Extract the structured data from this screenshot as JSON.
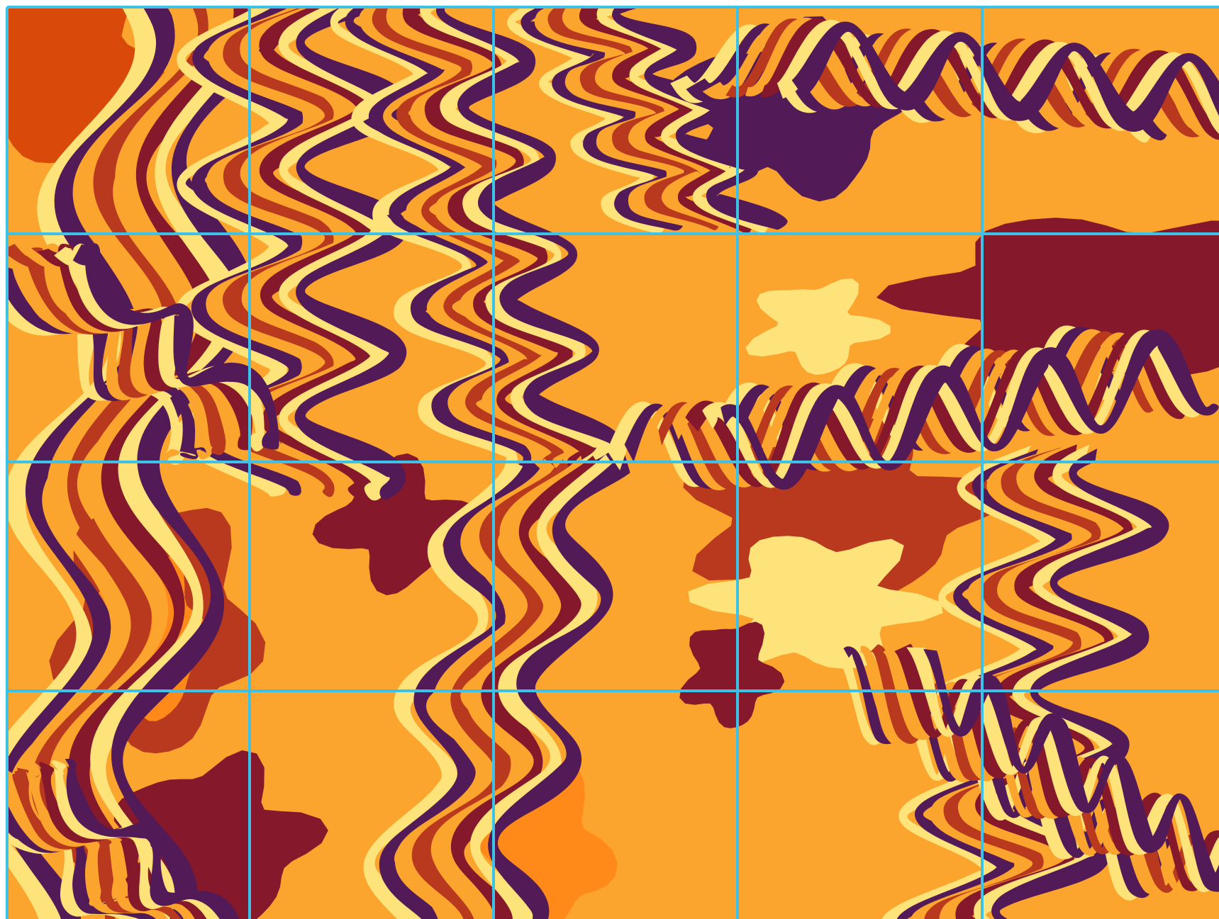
{
  "puzzle": {
    "grid": {
      "rows": 4,
      "cols": 5
    },
    "grid_line_color": "#3EC1E6",
    "palette": {
      "base_orange": "#FBA42E",
      "light_yellow": "#FDE37A",
      "deep_purple": "#521A57",
      "maroon": "#86182B",
      "rust": "#B8391E",
      "burnt_orange": "#D94A0A",
      "bright_orange": "#FF8A1A"
    },
    "tiles": [
      {
        "row": 0,
        "col": 0,
        "seed": 11
      },
      {
        "row": 0,
        "col": 1,
        "seed": 23
      },
      {
        "row": 0,
        "col": 2,
        "seed": 37
      },
      {
        "row": 0,
        "col": 3,
        "seed": 41
      },
      {
        "row": 0,
        "col": 4,
        "seed": 53
      },
      {
        "row": 1,
        "col": 0,
        "seed": 61
      },
      {
        "row": 1,
        "col": 1,
        "seed": 73
      },
      {
        "row": 1,
        "col": 2,
        "seed": 89
      },
      {
        "row": 1,
        "col": 3,
        "seed": 97
      },
      {
        "row": 1,
        "col": 4,
        "seed": 103
      },
      {
        "row": 2,
        "col": 0,
        "seed": 113
      },
      {
        "row": 2,
        "col": 1,
        "seed": 127
      },
      {
        "row": 2,
        "col": 2,
        "seed": 131
      },
      {
        "row": 2,
        "col": 3,
        "seed": 149
      },
      {
        "row": 2,
        "col": 4,
        "seed": 157
      },
      {
        "row": 3,
        "col": 0,
        "seed": 163
      },
      {
        "row": 3,
        "col": 1,
        "seed": 173
      },
      {
        "row": 3,
        "col": 2,
        "seed": 181
      },
      {
        "row": 3,
        "col": 3,
        "seed": 191
      },
      {
        "row": 3,
        "col": 4,
        "seed": 199
      }
    ]
  }
}
